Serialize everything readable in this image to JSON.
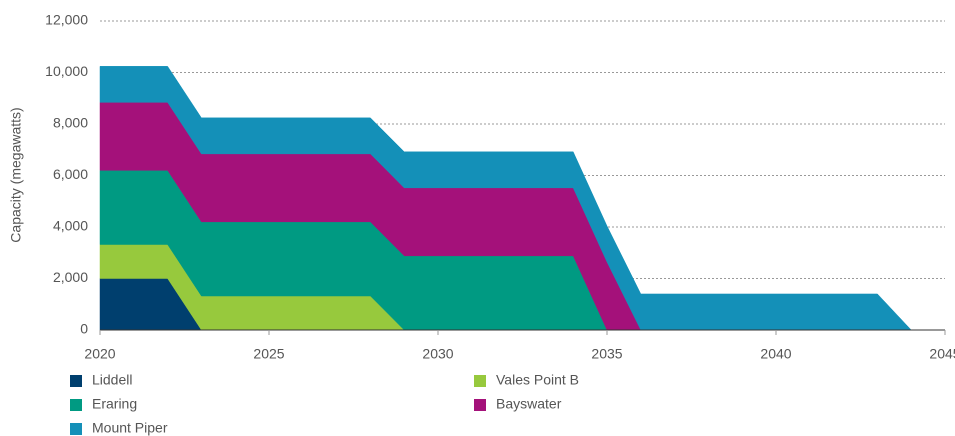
{
  "chart_data": {
    "type": "stacked_area",
    "y_label": "Capacity (megawatts)",
    "x": [
      2020,
      2022,
      2023,
      2028,
      2029,
      2034,
      2035,
      2036,
      2043,
      2044,
      2045
    ],
    "series": [
      {
        "name": "Liddell",
        "color": "#003f6e",
        "values": [
          2000,
          2000,
          0,
          0,
          0,
          0,
          0,
          0,
          0,
          0,
          0
        ]
      },
      {
        "name": "Vales Point B",
        "color": "#97c93d",
        "values": [
          1320,
          1320,
          1320,
          1320,
          0,
          0,
          0,
          0,
          0,
          0,
          0
        ]
      },
      {
        "name": "Eraring",
        "color": "#009a82",
        "values": [
          2880,
          2880,
          2880,
          2880,
          2880,
          2880,
          0,
          0,
          0,
          0,
          0
        ]
      },
      {
        "name": "Bayswater",
        "color": "#a4117a",
        "values": [
          2640,
          2640,
          2640,
          2640,
          2640,
          2640,
          2640,
          0,
          0,
          0,
          0
        ]
      },
      {
        "name": "Mount Piper",
        "color": "#1490b8",
        "values": [
          1400,
          1400,
          1400,
          1400,
          1400,
          1400,
          1400,
          1400,
          1400,
          0,
          0
        ]
      }
    ],
    "xlim": [
      2020,
      2045
    ],
    "xticks": [
      2020,
      2025,
      2030,
      2035,
      2040,
      2045
    ],
    "ylim": [
      0,
      12000
    ],
    "yticks": [
      0,
      {
        "value": 2000,
        "label": "2,000"
      },
      {
        "value": 4000,
        "label": "4,000"
      },
      {
        "value": 6000,
        "label": "6,000"
      },
      {
        "value": 8000,
        "label": "8,000"
      },
      {
        "value": 10000,
        "label": "10,000"
      },
      {
        "value": 12000,
        "label": "12,000"
      }
    ],
    "grid": true
  }
}
